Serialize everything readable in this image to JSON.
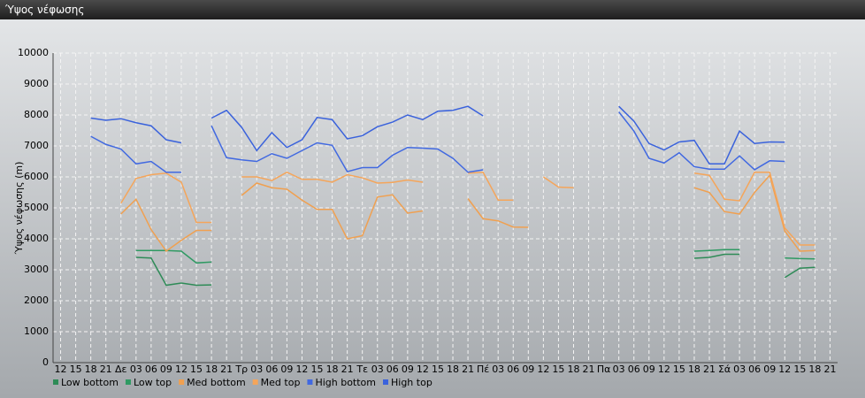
{
  "title_bar": "Ύψος νέφωσης",
  "chart_data": {
    "type": "line",
    "y_label": "Ύψος νέφωσης (m)",
    "categories": [
      "12",
      "15",
      "18",
      "21",
      "Δε",
      "03",
      "06",
      "09",
      "12",
      "15",
      "18",
      "21",
      "Τρ",
      "03",
      "06",
      "09",
      "12",
      "15",
      "18",
      "21",
      "Τε",
      "03",
      "06",
      "09",
      "12",
      "15",
      "18",
      "21",
      "Πέ",
      "03",
      "06",
      "09",
      "12",
      "15",
      "18",
      "21",
      "Πα",
      "03",
      "06",
      "09",
      "12",
      "15",
      "18",
      "21",
      "Σά",
      "03",
      "06",
      "09",
      "12",
      "15",
      "18",
      "21"
    ],
    "ylim": [
      0,
      10000
    ],
    "yticks": [
      0,
      1000,
      2000,
      3000,
      4000,
      5000,
      6000,
      7000,
      8000,
      9000,
      10000
    ],
    "grid": true,
    "series": [
      {
        "name": "Low bottom",
        "color": "#2e8b57",
        "values": [
          null,
          null,
          null,
          null,
          null,
          3400,
          3380,
          2500,
          2570,
          2500,
          2510,
          null,
          null,
          null,
          null,
          null,
          null,
          null,
          null,
          null,
          null,
          null,
          null,
          null,
          null,
          null,
          null,
          null,
          null,
          null,
          null,
          null,
          null,
          null,
          null,
          null,
          null,
          null,
          null,
          null,
          null,
          null,
          3370,
          3400,
          3500,
          3500,
          null,
          null,
          2750,
          3050,
          3080,
          null
        ]
      },
      {
        "name": "Low top",
        "color": "#2f9a63",
        "values": [
          null,
          null,
          null,
          null,
          null,
          3620,
          3620,
          3620,
          3600,
          3220,
          3250,
          null,
          null,
          null,
          null,
          null,
          null,
          null,
          null,
          null,
          null,
          null,
          null,
          null,
          null,
          null,
          null,
          null,
          null,
          null,
          null,
          null,
          null,
          null,
          null,
          null,
          null,
          null,
          null,
          null,
          null,
          null,
          3600,
          3620,
          3650,
          3650,
          null,
          null,
          3380,
          3360,
          3350,
          null
        ]
      },
      {
        "name": "Med bottom",
        "color": "#f0a050",
        "values": [
          null,
          null,
          null,
          null,
          4800,
          5280,
          4300,
          3600,
          3950,
          4270,
          4270,
          null,
          5400,
          5800,
          5650,
          5600,
          5250,
          4950,
          4950,
          4000,
          4100,
          5350,
          5420,
          4830,
          4900,
          null,
          null,
          5300,
          4650,
          4580,
          4380,
          4370,
          null,
          null,
          null,
          null,
          null,
          null,
          null,
          null,
          null,
          null,
          5650,
          5500,
          4880,
          4800,
          5500,
          6050,
          4250,
          3600,
          3620,
          null
        ]
      },
      {
        "name": "Med top",
        "color": "#f5a55a",
        "values": [
          null,
          null,
          null,
          null,
          5150,
          5950,
          6070,
          6120,
          5830,
          4530,
          4530,
          null,
          6000,
          6000,
          5880,
          6150,
          5920,
          5920,
          5830,
          6070,
          5970,
          5800,
          5820,
          5900,
          5830,
          null,
          null,
          6120,
          6150,
          5250,
          5250,
          null,
          6000,
          5670,
          5650,
          null,
          null,
          null,
          null,
          null,
          null,
          null,
          6120,
          6050,
          5280,
          5230,
          6150,
          6150,
          4350,
          3800,
          3800,
          null
        ]
      },
      {
        "name": "High bottom",
        "color": "#4169e1",
        "values": [
          null,
          null,
          7310,
          7050,
          6900,
          6420,
          6500,
          6150,
          6150,
          null,
          7650,
          6620,
          6550,
          6500,
          6750,
          6600,
          6850,
          7100,
          7020,
          6170,
          6300,
          6300,
          6700,
          6950,
          6930,
          6900,
          6600,
          6150,
          6230,
          null,
          null,
          null,
          null,
          null,
          null,
          null,
          null,
          8100,
          7480,
          6600,
          6450,
          6780,
          6330,
          6250,
          6250,
          6680,
          6230,
          6520,
          6500,
          null,
          null,
          null
        ]
      },
      {
        "name": "High top",
        "color": "#3a62dc",
        "values": [
          null,
          null,
          7900,
          7830,
          7880,
          7750,
          7650,
          7200,
          7100,
          null,
          7900,
          8150,
          7600,
          6850,
          7430,
          6950,
          7200,
          7920,
          7850,
          7230,
          7330,
          7620,
          7770,
          8000,
          7850,
          8120,
          8150,
          8280,
          7970,
          null,
          null,
          null,
          null,
          null,
          null,
          null,
          null,
          8280,
          7800,
          7080,
          6870,
          7130,
          7180,
          6420,
          6420,
          7480,
          7080,
          7130,
          7120,
          null,
          null,
          null
        ]
      }
    ]
  }
}
